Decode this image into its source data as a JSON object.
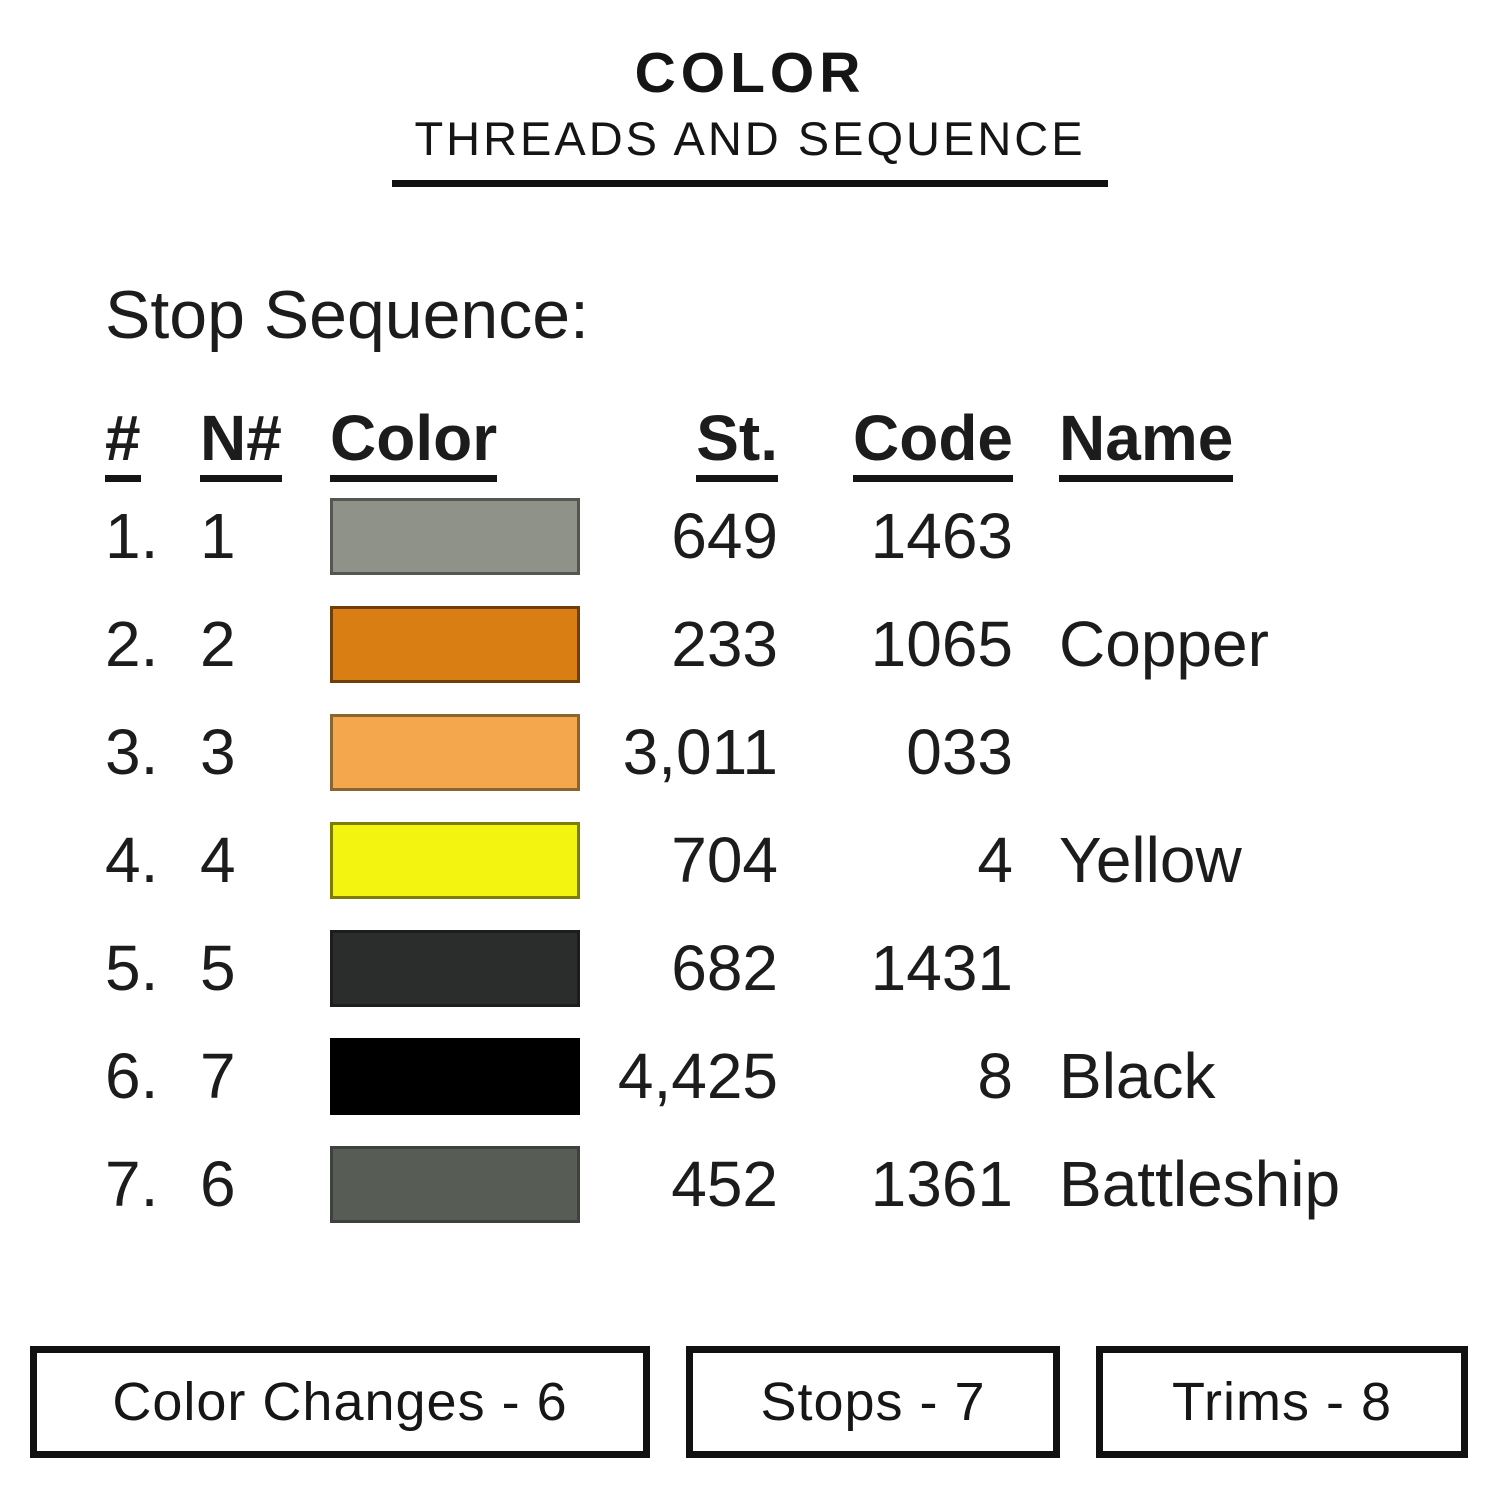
{
  "header": {
    "title": "COLOR",
    "subtitle": "THREADS AND SEQUENCE"
  },
  "section_title": "Stop Sequence:",
  "table": {
    "columns": [
      "#",
      "N#",
      "Color",
      "St.",
      "Code",
      "Name"
    ],
    "rows": [
      {
        "num": "1.",
        "needle": "1",
        "swatch": "#8F9289",
        "border": "#545750",
        "st": "649",
        "code": "1463",
        "name": ""
      },
      {
        "num": "2.",
        "needle": "2",
        "swatch": "#D87E12",
        "border": "#6e3f08",
        "st": "233",
        "code": "1065",
        "name": "Copper"
      },
      {
        "num": "3.",
        "needle": "3",
        "swatch": "#F5A74D",
        "border": "#8a652f",
        "st": "3,011",
        "code": "033",
        "name": ""
      },
      {
        "num": "4.",
        "needle": "4",
        "swatch": "#F4F411",
        "border": "#7d7d00",
        "st": "704",
        "code": "4",
        "name": "Yellow"
      },
      {
        "num": "5.",
        "needle": "5",
        "swatch": "#2B2D2C",
        "border": "#1c1d1c",
        "st": "682",
        "code": "1431",
        "name": ""
      },
      {
        "num": "6.",
        "needle": "7",
        "swatch": "#000000",
        "border": "#000000",
        "st": "4,425",
        "code": "8",
        "name": "Black"
      },
      {
        "num": "7.",
        "needle": "6",
        "swatch": "#575C55",
        "border": "#3e423c",
        "st": "452",
        "code": "1361",
        "name": "Battleship"
      }
    ]
  },
  "footer": {
    "boxes": [
      {
        "label": "Color Changes - 6"
      },
      {
        "label": "Stops - 7"
      },
      {
        "label": "Trims - 8"
      }
    ]
  }
}
